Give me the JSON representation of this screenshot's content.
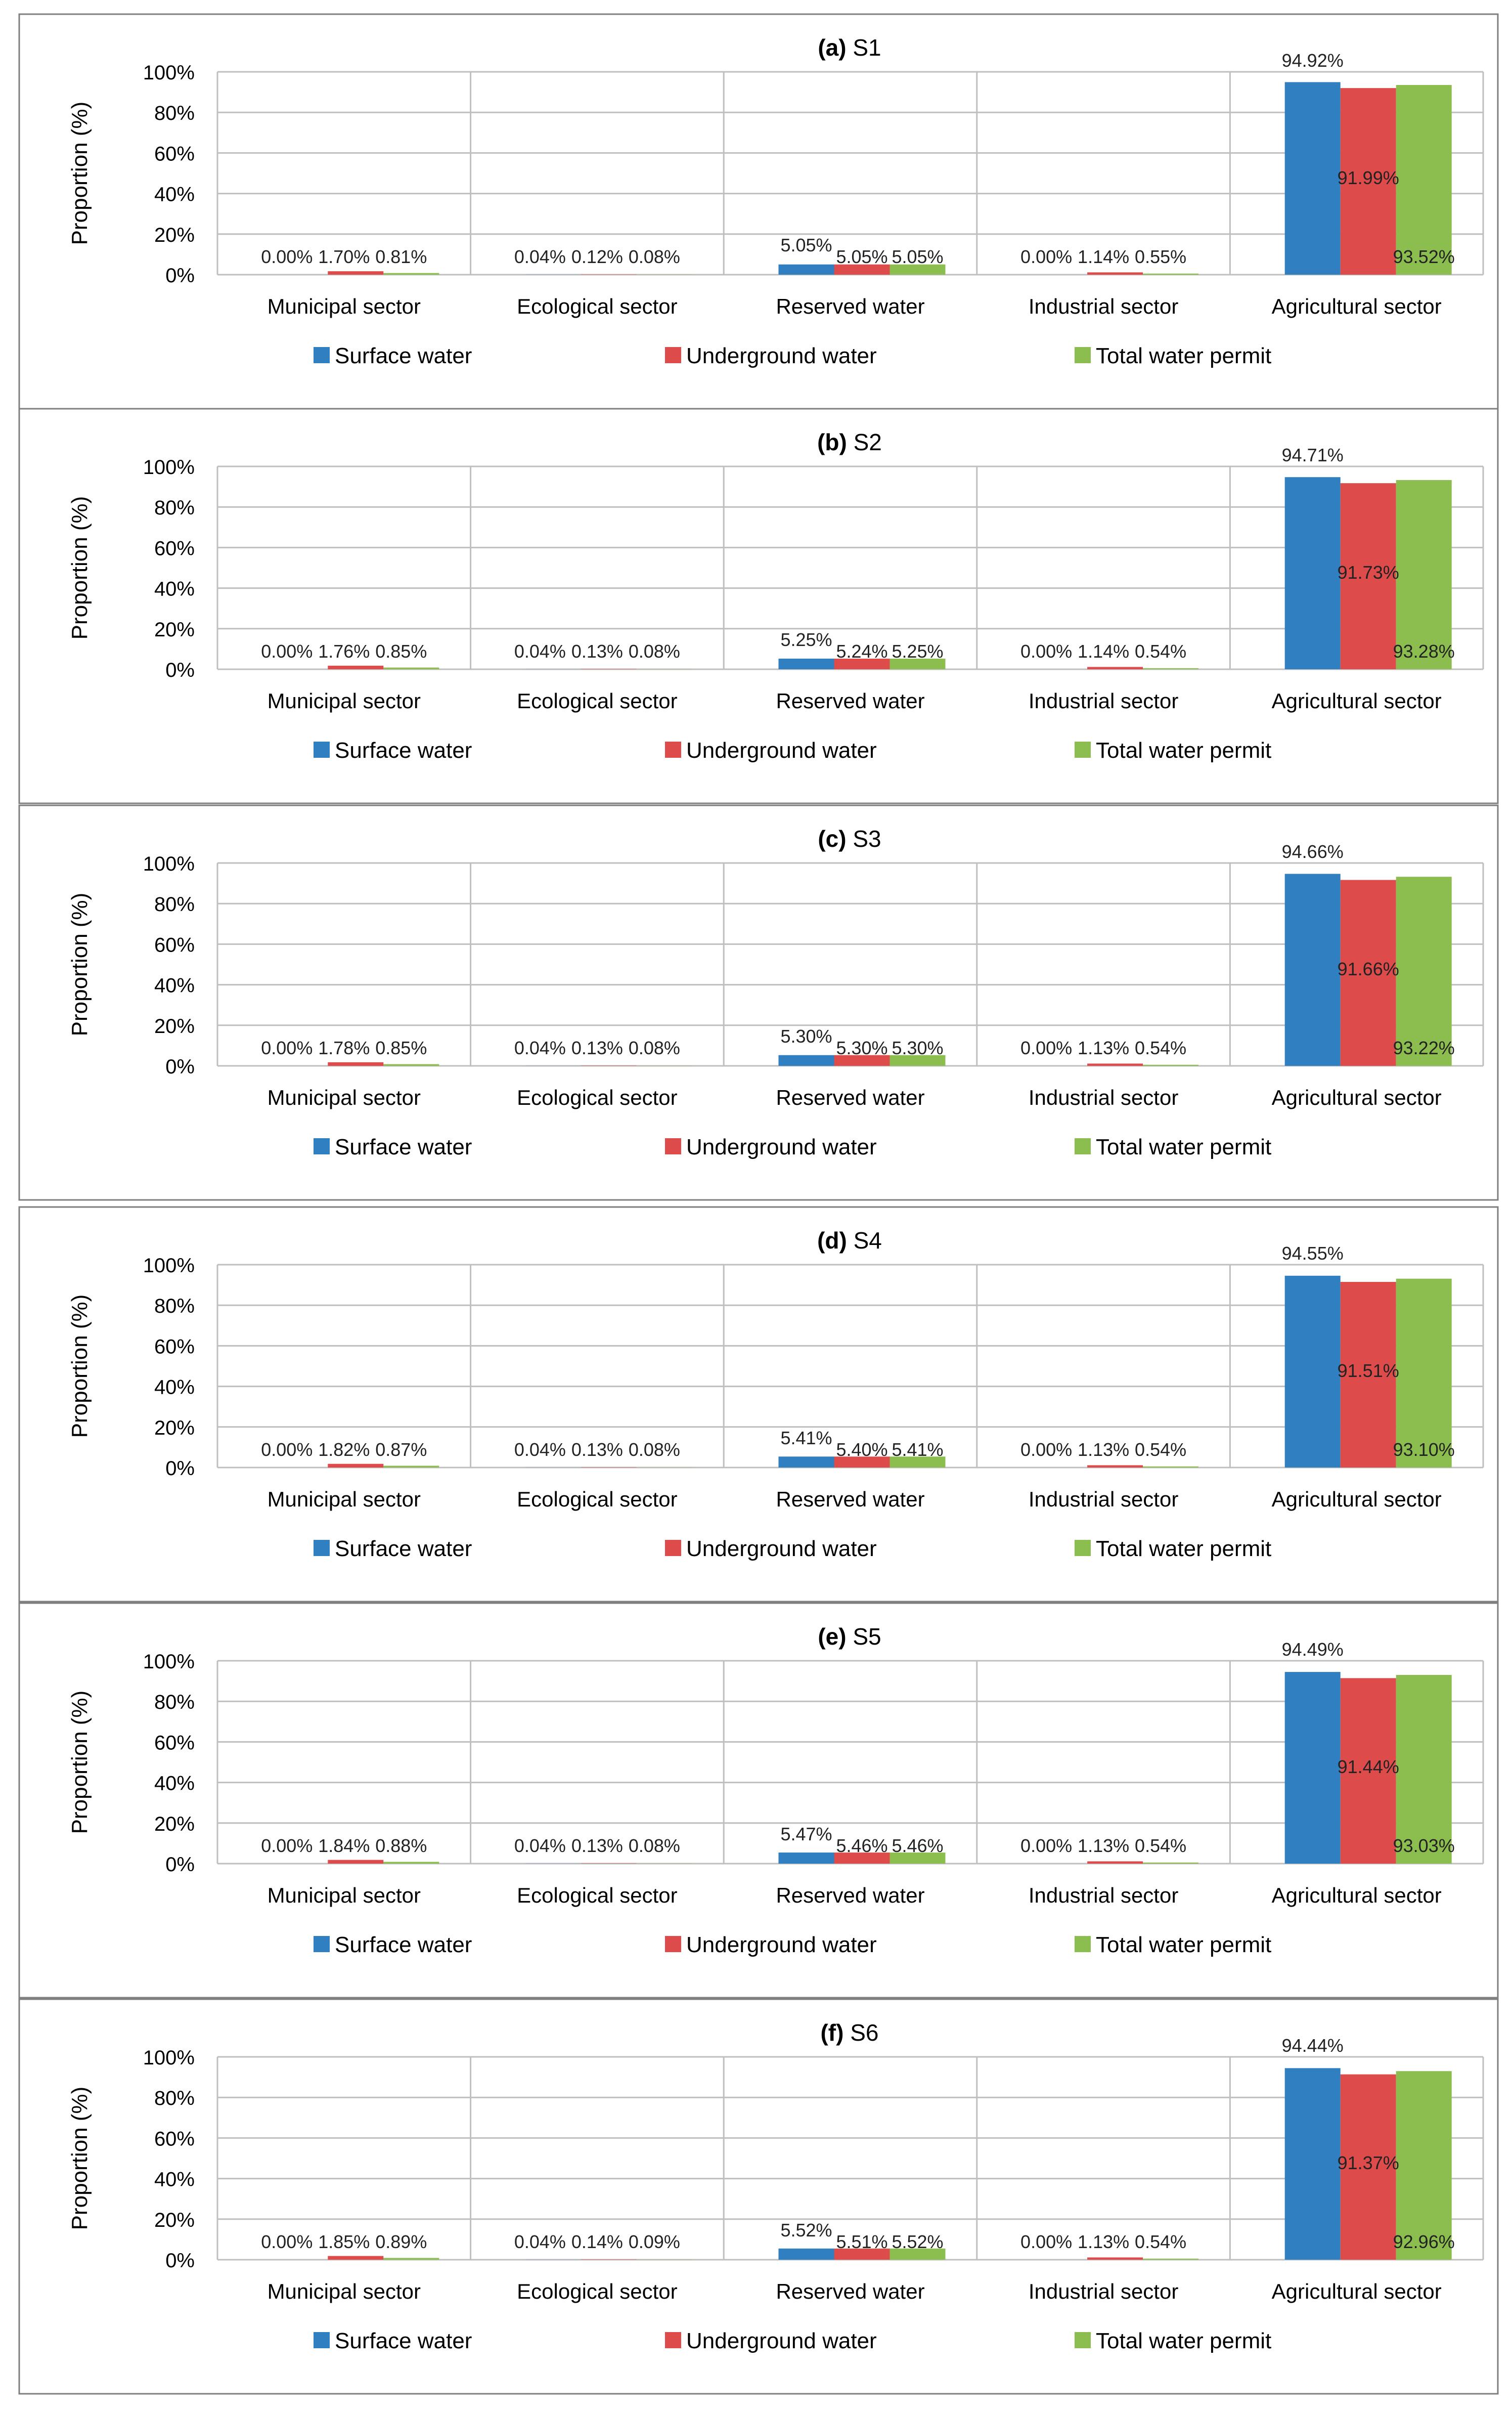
{
  "figure": {
    "legend": [
      "Surface water",
      "Underground water",
      "Total water permit"
    ],
    "categories": [
      "Municipal sector",
      "Ecological sector",
      "Reserved water",
      "Industrial sector",
      "Agricultural sector"
    ],
    "y_axis_label": "Proportion  (%)",
    "y_ticks": [
      "0%",
      "20%",
      "40%",
      "60%",
      "80%",
      "100%"
    ],
    "colors": {
      "surface": "#2f7fc1",
      "underground": "#de4b4b",
      "total": "#8bbd4f",
      "grid": "#bfbfbf",
      "frame": "#7f7f7f"
    }
  },
  "chart_data": [
    {
      "type": "bar",
      "title_prefix": "(a)",
      "title": "S1",
      "categories": [
        "Municipal sector",
        "Ecological sector",
        "Reserved water",
        "Industrial sector",
        "Agricultural sector"
      ],
      "ylabel": "Proportion  (%)",
      "ylim": [
        0,
        100
      ],
      "series": [
        {
          "name": "Surface water",
          "values": [
            0.0,
            0.04,
            5.05,
            0.0,
            94.92
          ],
          "labels": [
            "0.00%",
            "0.04%",
            "5.05%",
            "0.00%",
            "94.92%"
          ]
        },
        {
          "name": "Underground water",
          "values": [
            1.7,
            0.12,
            5.05,
            1.14,
            91.99
          ],
          "labels": [
            "1.70%",
            "0.12%",
            "5.05%",
            "1.14%",
            "91.99%"
          ]
        },
        {
          "name": "Total water permit",
          "values": [
            0.81,
            0.08,
            5.05,
            0.55,
            93.52
          ],
          "labels": [
            "0.81%",
            "0.08%",
            "5.05%",
            "0.55%",
            "93.52%"
          ]
        }
      ]
    },
    {
      "type": "bar",
      "title_prefix": "(b)",
      "title": "S2",
      "categories": [
        "Municipal sector",
        "Ecological sector",
        "Reserved water",
        "Industrial sector",
        "Agricultural sector"
      ],
      "ylabel": "Proportion  (%)",
      "ylim": [
        0,
        100
      ],
      "series": [
        {
          "name": "Surface water",
          "values": [
            0.0,
            0.04,
            5.25,
            0.0,
            94.71
          ],
          "labels": [
            "0.00%",
            "0.04%",
            "5.25%",
            "0.00%",
            "94.71%"
          ]
        },
        {
          "name": "Underground water",
          "values": [
            1.76,
            0.13,
            5.24,
            1.14,
            91.73
          ],
          "labels": [
            "1.76%",
            "0.13%",
            "5.24%",
            "1.14%",
            "91.73%"
          ]
        },
        {
          "name": "Total water permit",
          "values": [
            0.85,
            0.08,
            5.25,
            0.54,
            93.28
          ],
          "labels": [
            "0.85%",
            "0.08%",
            "5.25%",
            "0.54%",
            "93.28%"
          ]
        }
      ]
    },
    {
      "type": "bar",
      "title_prefix": "(c)",
      "title": "S3",
      "categories": [
        "Municipal sector",
        "Ecological sector",
        "Reserved water",
        "Industrial sector",
        "Agricultural sector"
      ],
      "ylabel": "Proportion  (%)",
      "ylim": [
        0,
        100
      ],
      "series": [
        {
          "name": "Surface water",
          "values": [
            0.0,
            0.04,
            5.3,
            0.0,
            94.66
          ],
          "labels": [
            "0.00%",
            "0.04%",
            "5.30%",
            "0.00%",
            "94.66%"
          ]
        },
        {
          "name": "Underground water",
          "values": [
            1.78,
            0.13,
            5.3,
            1.13,
            91.66
          ],
          "labels": [
            "1.78%",
            "0.13%",
            "5.30%",
            "1.13%",
            "91.66%"
          ]
        },
        {
          "name": "Total water permit",
          "values": [
            0.85,
            0.08,
            5.3,
            0.54,
            93.22
          ],
          "labels": [
            "0.85%",
            "0.08%",
            "5.30%",
            "0.54%",
            "93.22%"
          ]
        }
      ]
    },
    {
      "type": "bar",
      "title_prefix": "(d)",
      "title": "S4",
      "categories": [
        "Municipal sector",
        "Ecological sector",
        "Reserved water",
        "Industrial sector",
        "Agricultural sector"
      ],
      "ylabel": "Proportion  (%)",
      "ylim": [
        0,
        100
      ],
      "series": [
        {
          "name": "Surface water",
          "values": [
            0.0,
            0.04,
            5.41,
            0.0,
            94.55
          ],
          "labels": [
            "0.00%",
            "0.04%",
            "5.41%",
            "0.00%",
            "94.55%"
          ]
        },
        {
          "name": "Underground water",
          "values": [
            1.82,
            0.13,
            5.4,
            1.13,
            91.51
          ],
          "labels": [
            "1.82%",
            "0.13%",
            "5.40%",
            "1.13%",
            "91.51%"
          ]
        },
        {
          "name": "Total water permit",
          "values": [
            0.87,
            0.08,
            5.41,
            0.54,
            93.1
          ],
          "labels": [
            "0.87%",
            "0.08%",
            "5.41%",
            "0.54%",
            "93.10%"
          ]
        }
      ]
    },
    {
      "type": "bar",
      "title_prefix": "(e)",
      "title": "S5",
      "categories": [
        "Municipal sector",
        "Ecological sector",
        "Reserved water",
        "Industrial sector",
        "Agricultural sector"
      ],
      "ylabel": "Proportion  (%)",
      "ylim": [
        0,
        100
      ],
      "series": [
        {
          "name": "Surface water",
          "values": [
            0.0,
            0.04,
            5.47,
            0.0,
            94.49
          ],
          "labels": [
            "0.00%",
            "0.04%",
            "5.47%",
            "0.00%",
            "94.49%"
          ]
        },
        {
          "name": "Underground water",
          "values": [
            1.84,
            0.13,
            5.46,
            1.13,
            91.44
          ],
          "labels": [
            "1.84%",
            "0.13%",
            "5.46%",
            "1.13%",
            "91.44%"
          ]
        },
        {
          "name": "Total water permit",
          "values": [
            0.88,
            0.08,
            5.46,
            0.54,
            93.03
          ],
          "labels": [
            "0.88%",
            "0.08%",
            "5.46%",
            "0.54%",
            "93.03%"
          ]
        }
      ]
    },
    {
      "type": "bar",
      "title_prefix": "(f)",
      "title": "S6",
      "categories": [
        "Municipal sector",
        "Ecological sector",
        "Reserved water",
        "Industrial sector",
        "Agricultural sector"
      ],
      "ylabel": "Proportion  (%)",
      "ylim": [
        0,
        100
      ],
      "series": [
        {
          "name": "Surface water",
          "values": [
            0.0,
            0.04,
            5.52,
            0.0,
            94.44
          ],
          "labels": [
            "0.00%",
            "0.04%",
            "5.52%",
            "0.00%",
            "94.44%"
          ]
        },
        {
          "name": "Underground water",
          "values": [
            1.85,
            0.14,
            5.51,
            1.13,
            91.37
          ],
          "labels": [
            "1.85%",
            "0.14%",
            "5.51%",
            "1.13%",
            "91.37%"
          ]
        },
        {
          "name": "Total water permit",
          "values": [
            0.89,
            0.09,
            5.52,
            0.54,
            92.96
          ],
          "labels": [
            "0.89%",
            "0.09%",
            "5.52%",
            "0.54%",
            "92.96%"
          ]
        }
      ]
    }
  ]
}
